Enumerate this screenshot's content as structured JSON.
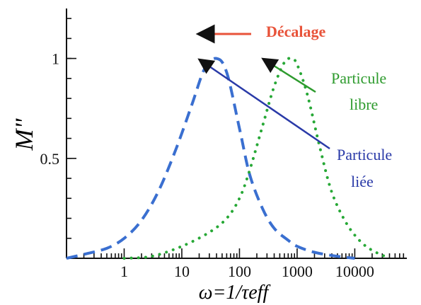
{
  "chart_data": {
    "type": "line",
    "xscale": "log",
    "xlabel": "ω=1/τeff",
    "ylabel": "M\"",
    "xlim": [
      0.1,
      80000
    ],
    "ylim": [
      0,
      1.25
    ],
    "x_ticks": [
      1,
      10,
      100,
      1000,
      10000
    ],
    "y_ticks": [
      0.5,
      1
    ],
    "x_tick_labels": [
      "1",
      "10",
      "100",
      "1000",
      "10000"
    ],
    "y_tick_labels": [
      "0.5",
      "1"
    ],
    "series": [
      {
        "name": "Particule liée",
        "color": "#3a6fd0",
        "style": "dashed",
        "x": [
          0.1,
          0.2,
          0.5,
          1,
          2,
          4,
          8,
          15,
          25,
          40,
          60,
          100,
          150,
          250,
          400,
          700,
          1000,
          2000,
          5000,
          10000
        ],
        "y": [
          0.0,
          0.02,
          0.05,
          0.1,
          0.19,
          0.34,
          0.55,
          0.77,
          0.95,
          1.0,
          0.93,
          0.65,
          0.42,
          0.25,
          0.15,
          0.09,
          0.06,
          0.03,
          0.01,
          0.0
        ]
      },
      {
        "name": "Particule libre",
        "color": "#27a836",
        "style": "dotted",
        "x": [
          1,
          3,
          10,
          30,
          60,
          100,
          150,
          250,
          400,
          600,
          800,
          1000,
          1500,
          2500,
          4000,
          7000,
          12000,
          20000,
          40000
        ],
        "y": [
          0.0,
          0.01,
          0.06,
          0.13,
          0.2,
          0.3,
          0.44,
          0.66,
          0.86,
          0.98,
          1.0,
          0.97,
          0.82,
          0.55,
          0.33,
          0.18,
          0.09,
          0.04,
          0.0
        ]
      }
    ],
    "annotations": {
      "shift": "Décalage",
      "free_line1": "Particule",
      "free_line2": "libre",
      "bound_line1": "Particule",
      "bound_line2": "liée"
    },
    "colors": {
      "shift": "#e8533a",
      "free": "#2e9b2e",
      "bound": "#2a3aa8",
      "arrow": "#111111"
    }
  }
}
